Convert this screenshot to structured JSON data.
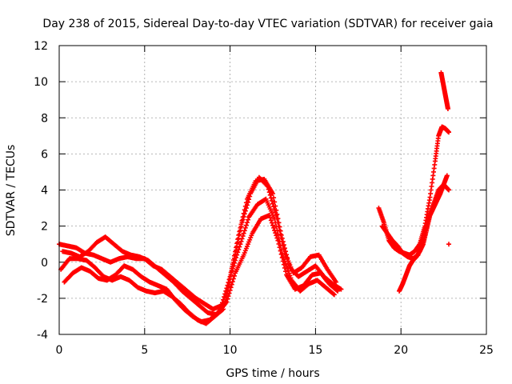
{
  "chart_data": {
    "type": "scatter",
    "title": "Day 238 of 2015, Sidereal Day-to-day VTEC variation (SDTVAR) for receiver gaia",
    "xlabel": "GPS time / hours",
    "ylabel": "SDTVAR / TECUs",
    "xlim": [
      0,
      25
    ],
    "ylim": [
      -4,
      12
    ],
    "xticks": [
      0,
      5,
      10,
      15,
      20,
      25
    ],
    "yticks": [
      -4,
      -2,
      0,
      2,
      4,
      6,
      8,
      10,
      12
    ],
    "grid": true,
    "marker": "+",
    "color": "#ff0000",
    "series": [
      {
        "name": "track-1",
        "x": [
          0.0,
          0.5,
          1.0,
          1.5,
          2.0,
          2.5,
          3.0,
          3.5,
          4.0,
          4.5,
          5.0,
          5.5,
          6.0,
          6.5,
          7.0,
          7.5,
          8.0,
          8.5,
          9.0,
          9.5,
          10.0,
          10.5,
          11.0,
          11.5,
          12.0,
          12.5,
          13.0,
          13.5,
          14.0,
          14.5,
          15.0,
          15.5,
          16.0,
          16.5
        ],
        "y": [
          1.0,
          0.9,
          0.8,
          0.5,
          0.4,
          0.2,
          0.0,
          0.2,
          0.3,
          0.2,
          0.2,
          -0.2,
          -0.4,
          -0.8,
          -1.2,
          -1.6,
          -2.0,
          -2.3,
          -2.6,
          -2.4,
          -0.8,
          1.5,
          3.5,
          4.5,
          4.6,
          3.8,
          1.5,
          -0.3,
          -0.8,
          -0.5,
          -0.2,
          -0.8,
          -1.2,
          -1.5
        ]
      },
      {
        "name": "track-2",
        "x": [
          0.2,
          0.7,
          1.2,
          1.7,
          2.2,
          2.7,
          3.2,
          3.7,
          4.2,
          4.7,
          5.2,
          5.7,
          6.2,
          6.7,
          7.2,
          7.7,
          8.2,
          8.7,
          9.2,
          9.7,
          10.2,
          10.7,
          11.2,
          11.7,
          12.2,
          12.7,
          13.2,
          13.7,
          14.2,
          14.7,
          15.2,
          15.7,
          16.2
        ],
        "y": [
          0.6,
          0.5,
          0.3,
          0.6,
          1.1,
          1.4,
          1.0,
          0.6,
          0.4,
          0.3,
          0.1,
          -0.3,
          -0.7,
          -1.1,
          -1.6,
          -2.0,
          -2.4,
          -2.8,
          -2.9,
          -2.3,
          0.0,
          2.2,
          3.8,
          4.7,
          4.2,
          2.6,
          0.5,
          -0.6,
          -0.3,
          0.3,
          0.4,
          -0.4,
          -1.1
        ]
      },
      {
        "name": "track-3",
        "x": [
          0.1,
          0.6,
          1.1,
          1.6,
          2.1,
          2.6,
          3.1,
          3.6,
          4.1,
          4.6,
          5.1,
          5.6,
          6.1,
          6.6,
          7.1,
          7.6,
          8.1,
          8.6,
          9.1,
          9.6,
          10.1,
          10.6,
          11.1,
          11.6,
          12.1,
          12.6,
          13.1,
          13.6,
          14.1,
          14.6,
          15.1,
          15.6,
          16.1
        ],
        "y": [
          -0.4,
          0.2,
          0.2,
          0.1,
          -0.3,
          -0.8,
          -1.0,
          -0.8,
          -1.0,
          -1.4,
          -1.6,
          -1.7,
          -1.6,
          -1.9,
          -2.3,
          -2.8,
          -3.2,
          -3.4,
          -3.0,
          -2.6,
          -0.5,
          1.0,
          2.5,
          3.2,
          3.5,
          2.4,
          0.3,
          -1.0,
          -1.6,
          -1.2,
          -1.0,
          -1.4,
          -1.8
        ]
      },
      {
        "name": "track-4",
        "x": [
          0.3,
          0.8,
          1.3,
          1.8,
          2.3,
          2.8,
          3.3,
          3.8,
          4.3,
          4.8,
          5.3,
          5.8,
          6.3,
          6.8,
          7.3,
          7.8,
          8.3,
          8.8,
          9.3,
          9.8,
          10.3,
          10.8,
          11.3,
          11.8,
          12.3,
          12.8,
          13.3,
          13.8,
          14.3,
          14.8,
          15.3,
          15.8,
          16.3
        ],
        "y": [
          -1.1,
          -0.6,
          -0.3,
          -0.5,
          -0.9,
          -1.0,
          -0.7,
          -0.2,
          -0.4,
          -0.8,
          -1.1,
          -1.3,
          -1.5,
          -2.1,
          -2.6,
          -3.0,
          -3.3,
          -3.2,
          -2.8,
          -2.2,
          -0.6,
          0.4,
          1.6,
          2.4,
          2.6,
          1.2,
          -0.7,
          -1.5,
          -1.3,
          -0.7,
          -0.6,
          -1.2,
          -1.6
        ]
      },
      {
        "name": "track-5",
        "x": [
          18.7,
          19.0,
          19.3,
          19.6,
          19.9,
          20.2,
          20.5,
          20.8,
          21.1,
          21.4,
          21.7,
          22.0,
          22.2,
          22.4,
          22.6,
          22.8
        ],
        "y": [
          3.0,
          2.2,
          1.2,
          0.8,
          0.6,
          0.5,
          0.4,
          0.6,
          1.0,
          2.0,
          3.6,
          5.6,
          7.0,
          7.5,
          7.4,
          7.2
        ]
      },
      {
        "name": "track-6",
        "x": [
          18.9,
          19.2,
          19.5,
          19.8,
          20.1,
          20.4,
          20.7,
          21.0,
          21.3,
          21.6,
          21.9,
          22.2,
          22.5,
          22.8
        ],
        "y": [
          2.0,
          1.6,
          1.2,
          0.9,
          0.5,
          0.3,
          0.2,
          0.4,
          1.5,
          2.4,
          3.2,
          4.0,
          4.3,
          4.0
        ]
      },
      {
        "name": "track-7",
        "x": [
          19.9,
          20.1,
          20.3,
          20.5,
          20.7,
          20.9,
          21.1,
          21.3,
          21.5,
          21.7,
          21.9,
          22.1,
          22.3,
          22.5,
          22.7
        ],
        "y": [
          -1.6,
          -1.2,
          -0.7,
          -0.2,
          0.1,
          0.3,
          0.6,
          1.0,
          1.8,
          2.6,
          3.0,
          3.4,
          3.8,
          4.3,
          4.8
        ]
      },
      {
        "name": "track-8",
        "x": [
          22.35,
          22.45,
          22.55,
          22.65,
          22.75
        ],
        "y": [
          10.5,
          10.0,
          9.5,
          9.0,
          8.5
        ]
      },
      {
        "name": "track-9",
        "x": [
          22.8
        ],
        "y": [
          1.0
        ]
      }
    ]
  }
}
